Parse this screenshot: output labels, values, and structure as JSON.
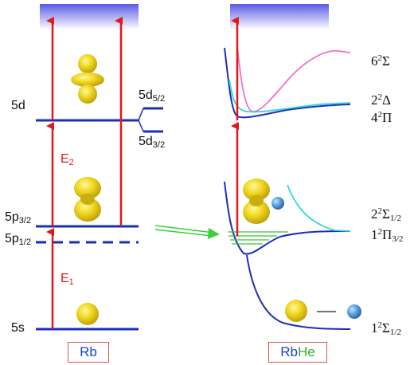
{
  "colors": {
    "level_line": "#1a2fb8",
    "transition_arrow": "#e01818",
    "continuum_band": "#6a6af0",
    "orbital": "#e8d21a",
    "he_atom": "#4a90d0",
    "curve_dark_blue": "#1a2fb8",
    "curve_cyan": "#2ad8e0",
    "curve_magenta": "#f070d0",
    "vib_lines": "#3ac03a",
    "transfer_arrow": "#3ad03a"
  },
  "rb": {
    "levels": {
      "s5": "5s",
      "p12_main": "5p",
      "p12_sub": "1/2",
      "p32_main": "5p",
      "p32_sub": "3/2",
      "d": "5d",
      "d52_main": "5d",
      "d52_sub": "5/2",
      "d32_main": "5d",
      "d32_sub": "3/2"
    },
    "transitions": {
      "e1_main": "E",
      "e1_sub": "1",
      "e2_main": "E",
      "e2_sub": "2"
    },
    "box_label": "Rb"
  },
  "rbhe": {
    "states": {
      "s6_pre": "6",
      "s6_sup": "2",
      "s6_sym": "Σ",
      "d2_pre": "2",
      "d2_sup": "2",
      "d2_sym": "Δ",
      "p4_pre": "4",
      "p4_sup": "2",
      "p4_sym": "Π",
      "s2_pre": "2",
      "s2_sup": "2",
      "s2_sym": "Σ",
      "s2_sub": "1/2",
      "p1_pre": "1",
      "p1_sup": "2",
      "p1_sym": "Π",
      "p1_sub": "3/2",
      "s1_pre": "1",
      "s1_sup": "2",
      "s1_sym": "Σ",
      "s1_sub": "1/2"
    },
    "box_label_rb": "Rb",
    "box_label_he": "He"
  }
}
